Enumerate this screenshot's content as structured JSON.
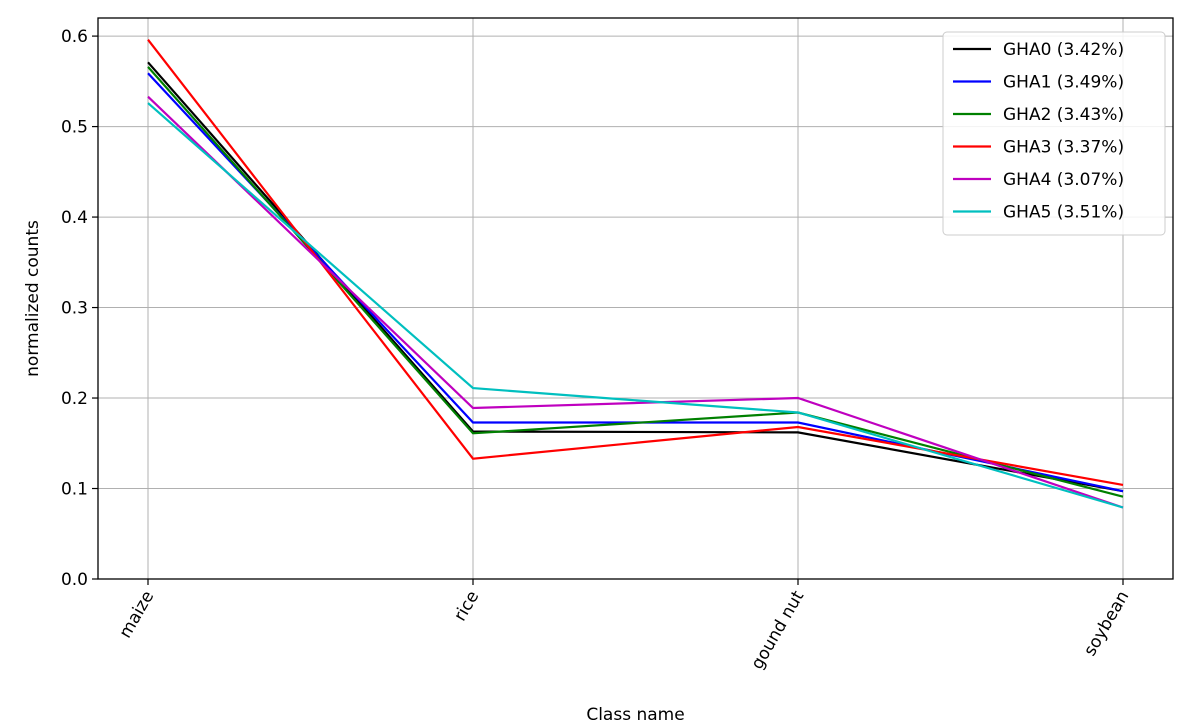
{
  "chart_data": {
    "type": "line",
    "title": "",
    "xlabel": "Class name",
    "ylabel": "normalized counts",
    "categories": [
      "maize",
      "rice",
      "gound nut",
      "soybean"
    ],
    "ylim": [
      0.0,
      0.62
    ],
    "yticks": [
      0.0,
      0.1,
      0.2,
      0.3,
      0.4,
      0.5,
      0.6
    ],
    "ytick_labels": [
      "0.0",
      "0.1",
      "0.2",
      "0.3",
      "0.4",
      "0.5",
      "0.6"
    ],
    "grid": true,
    "legend_position": "top-right",
    "series": [
      {
        "name": "GHA0 (3.42%)",
        "color": "#000000",
        "values": [
          0.571,
          0.163,
          0.162,
          0.097
        ]
      },
      {
        "name": "GHA1 (3.49%)",
        "color": "#0000ff",
        "values": [
          0.559,
          0.173,
          0.173,
          0.097
        ]
      },
      {
        "name": "GHA2 (3.43%)",
        "color": "#008000",
        "values": [
          0.566,
          0.161,
          0.184,
          0.091
        ]
      },
      {
        "name": "GHA3 (3.37%)",
        "color": "#ff0000",
        "values": [
          0.596,
          0.133,
          0.168,
          0.104
        ]
      },
      {
        "name": "GHA4 (3.07%)",
        "color": "#bf00bf",
        "values": [
          0.533,
          0.189,
          0.2,
          0.079
        ]
      },
      {
        "name": "GHA5 (3.51%)",
        "color": "#00bfbf",
        "values": [
          0.526,
          0.211,
          0.184,
          0.079
        ]
      }
    ]
  }
}
